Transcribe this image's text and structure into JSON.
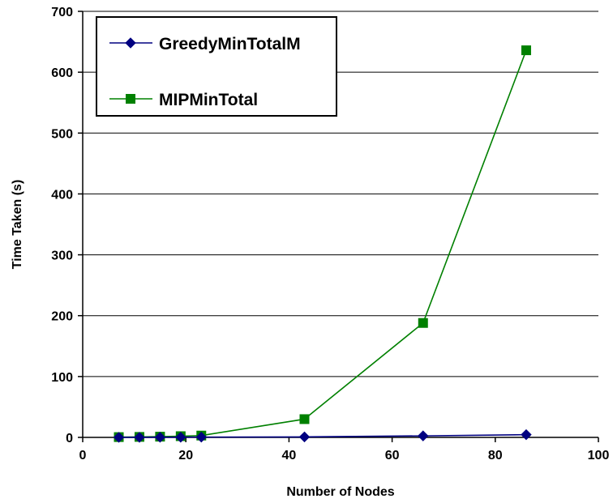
{
  "chart_data": {
    "type": "line",
    "title": "",
    "xlabel": "Number of Nodes",
    "ylabel": "Time Taken (s)",
    "xlim": [
      0,
      100
    ],
    "ylim": [
      0,
      700
    ],
    "xticks": [
      0,
      20,
      40,
      60,
      80,
      100
    ],
    "yticks": [
      0,
      100,
      200,
      300,
      400,
      500,
      600,
      700
    ],
    "grid": "horizontal",
    "legend_position": "top-left",
    "series": [
      {
        "name": "GreedyMinTotalM",
        "color": "#000080",
        "marker": "diamond",
        "points": [
          [
            7,
            0.1
          ],
          [
            11,
            0.1
          ],
          [
            15,
            0.2
          ],
          [
            19,
            0.3
          ],
          [
            23,
            0.5
          ],
          [
            43,
            0.8
          ],
          [
            66,
            2.5
          ],
          [
            86,
            4.5
          ]
        ]
      },
      {
        "name": "MIPMinTotal",
        "color": "#008000",
        "marker": "square",
        "points": [
          [
            7,
            0.5
          ],
          [
            11,
            0.8
          ],
          [
            15,
            1.2
          ],
          [
            19,
            2
          ],
          [
            23,
            3
          ],
          [
            43,
            30
          ],
          [
            66,
            188
          ],
          [
            86,
            636
          ]
        ]
      }
    ]
  }
}
